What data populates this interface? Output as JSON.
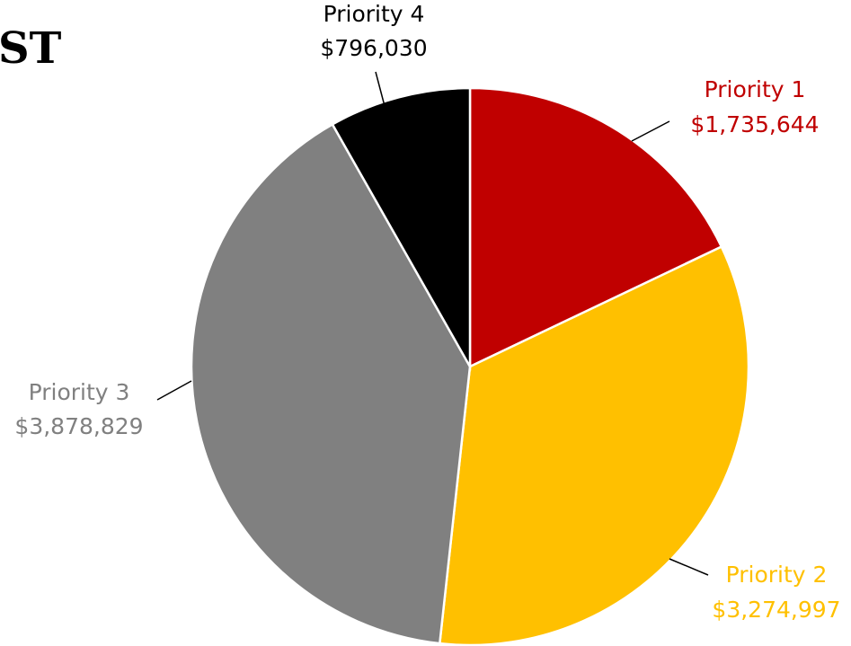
{
  "chart_data": {
    "type": "pie",
    "title": "ST",
    "categories": [
      "Priority 1",
      "Priority 2",
      "Priority 3",
      "Priority 4"
    ],
    "values": [
      1735644,
      3274997,
      3878829,
      796030
    ],
    "value_labels": [
      "$1,735,644",
      "$3,274,997",
      "$3,878,829",
      "$796,030"
    ],
    "colors": [
      "#c00000",
      "#ffc000",
      "#808080",
      "#000000"
    ],
    "label_colors": [
      "#c00000",
      "#ffc000",
      "#808080",
      "#000000"
    ]
  }
}
